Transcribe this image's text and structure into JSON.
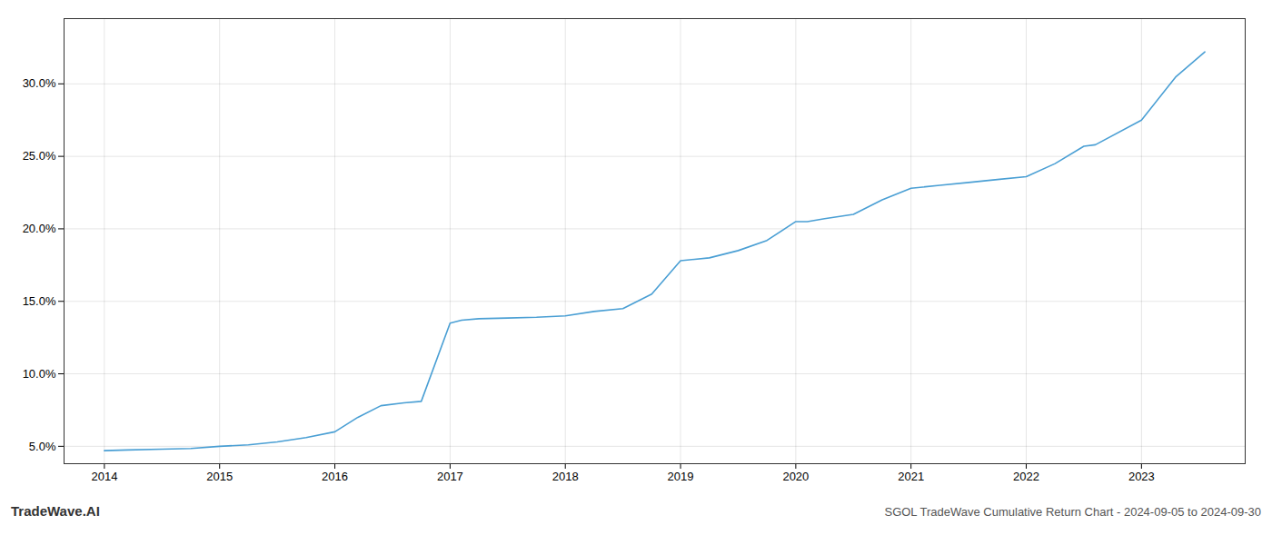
{
  "chart_data": {
    "type": "line",
    "title": "SGOL TradeWave Cumulative Return Chart - 2024-09-05 to 2024-09-30",
    "annotations": [
      "TradeWave.AI"
    ],
    "color": "#4a9fd4",
    "x": [
      2014.0,
      2014.2,
      2014.5,
      2014.75,
      2015.0,
      2015.25,
      2015.5,
      2015.75,
      2016.0,
      2016.2,
      2016.4,
      2016.6,
      2016.75,
      2017.0,
      2017.1,
      2017.25,
      2017.5,
      2017.75,
      2018.0,
      2018.25,
      2018.5,
      2018.75,
      2019.0,
      2019.25,
      2019.5,
      2019.75,
      2020.0,
      2020.1,
      2020.25,
      2020.5,
      2020.75,
      2021.0,
      2021.25,
      2021.5,
      2021.75,
      2022.0,
      2022.25,
      2022.5,
      2022.6,
      2023.0,
      2023.3,
      2023.55
    ],
    "values": [
      4.7,
      4.75,
      4.8,
      4.85,
      5.0,
      5.1,
      5.3,
      5.6,
      6.0,
      7.0,
      7.8,
      8.0,
      8.1,
      13.5,
      13.7,
      13.8,
      13.85,
      13.9,
      14.0,
      14.3,
      14.5,
      15.5,
      17.8,
      18.0,
      18.5,
      19.2,
      20.5,
      20.5,
      20.7,
      21.0,
      22.0,
      22.8,
      23.0,
      23.2,
      23.4,
      23.6,
      24.5,
      25.7,
      25.8,
      27.5,
      30.5,
      32.2
    ],
    "xlim": [
      2013.65,
      2023.9
    ],
    "ylim": [
      3.8,
      34.5
    ],
    "xticks": [
      2014,
      2015,
      2016,
      2017,
      2018,
      2019,
      2020,
      2021,
      2022,
      2023
    ],
    "yticks": [
      {
        "value": 5.0,
        "label": "5.0%"
      },
      {
        "value": 10.0,
        "label": "10.0%"
      },
      {
        "value": 15.0,
        "label": "15.0%"
      },
      {
        "value": 20.0,
        "label": "20.0%"
      },
      {
        "value": 25.0,
        "label": "25.0%"
      },
      {
        "value": 30.0,
        "label": "30.0%"
      }
    ],
    "grid": true
  }
}
